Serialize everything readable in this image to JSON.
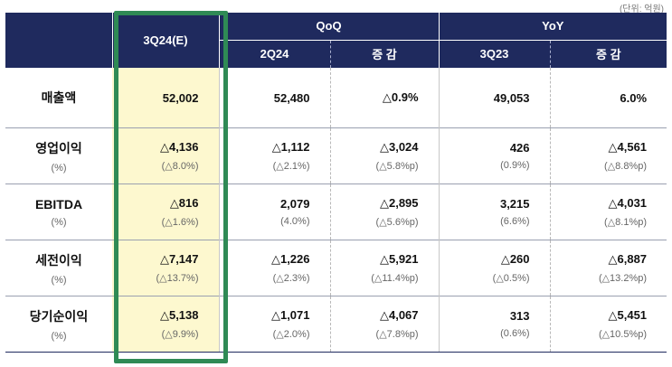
{
  "unit_note": "(단위: 억원)",
  "headers": {
    "current": "3Q24(E)",
    "qoq_group": "QoQ",
    "yoy_group": "YoY",
    "qoq_prev": "2Q24",
    "qoq_diff": "증 감",
    "yoy_prev": "3Q23",
    "yoy_diff": "증 감"
  },
  "rows": [
    {
      "label": "매출액",
      "sub": "",
      "cells": [
        {
          "v": "52,002",
          "p": ""
        },
        {
          "v": "52,480",
          "p": ""
        },
        {
          "v": "△0.9%",
          "p": ""
        },
        {
          "v": "49,053",
          "p": ""
        },
        {
          "v": "6.0%",
          "p": ""
        }
      ]
    },
    {
      "label": "영업이익",
      "sub": "(%)",
      "cells": [
        {
          "v": "△4,136",
          "p": "(△8.0%)"
        },
        {
          "v": "△1,112",
          "p": "(△2.1%)"
        },
        {
          "v": "△3,024",
          "p": "(△5.8%p)"
        },
        {
          "v": "426",
          "p": "(0.9%)"
        },
        {
          "v": "△4,561",
          "p": "(△8.8%p)"
        }
      ]
    },
    {
      "label": "EBITDA",
      "sub": "(%)",
      "cells": [
        {
          "v": "△816",
          "p": "(△1.6%)"
        },
        {
          "v": "2,079",
          "p": "(4.0%)"
        },
        {
          "v": "△2,895",
          "p": "(△5.6%p)"
        },
        {
          "v": "3,215",
          "p": "(6.6%)"
        },
        {
          "v": "△4,031",
          "p": "(△8.1%p)"
        }
      ]
    },
    {
      "label": "세전이익",
      "sub": "(%)",
      "cells": [
        {
          "v": "△7,147",
          "p": "(△13.7%)"
        },
        {
          "v": "△1,226",
          "p": "(△2.3%)"
        },
        {
          "v": "△5,921",
          "p": "(△11.4%p)"
        },
        {
          "v": "△260",
          "p": "(△0.5%)"
        },
        {
          "v": "△6,887",
          "p": "(△13.2%p)"
        }
      ]
    },
    {
      "label": "당기순이익",
      "sub": "(%)",
      "cells": [
        {
          "v": "△5,138",
          "p": "(△9.9%)"
        },
        {
          "v": "△1,071",
          "p": "(△2.0%)"
        },
        {
          "v": "△4,067",
          "p": "(△7.8%p)"
        },
        {
          "v": "313",
          "p": "(0.6%)"
        },
        {
          "v": "△5,451",
          "p": "(△10.5%p)"
        }
      ]
    }
  ],
  "colors": {
    "header_bg": "#1f2a5e",
    "highlight_bg": "#fdf8cf",
    "highlight_frame": "#2f8a55"
  }
}
